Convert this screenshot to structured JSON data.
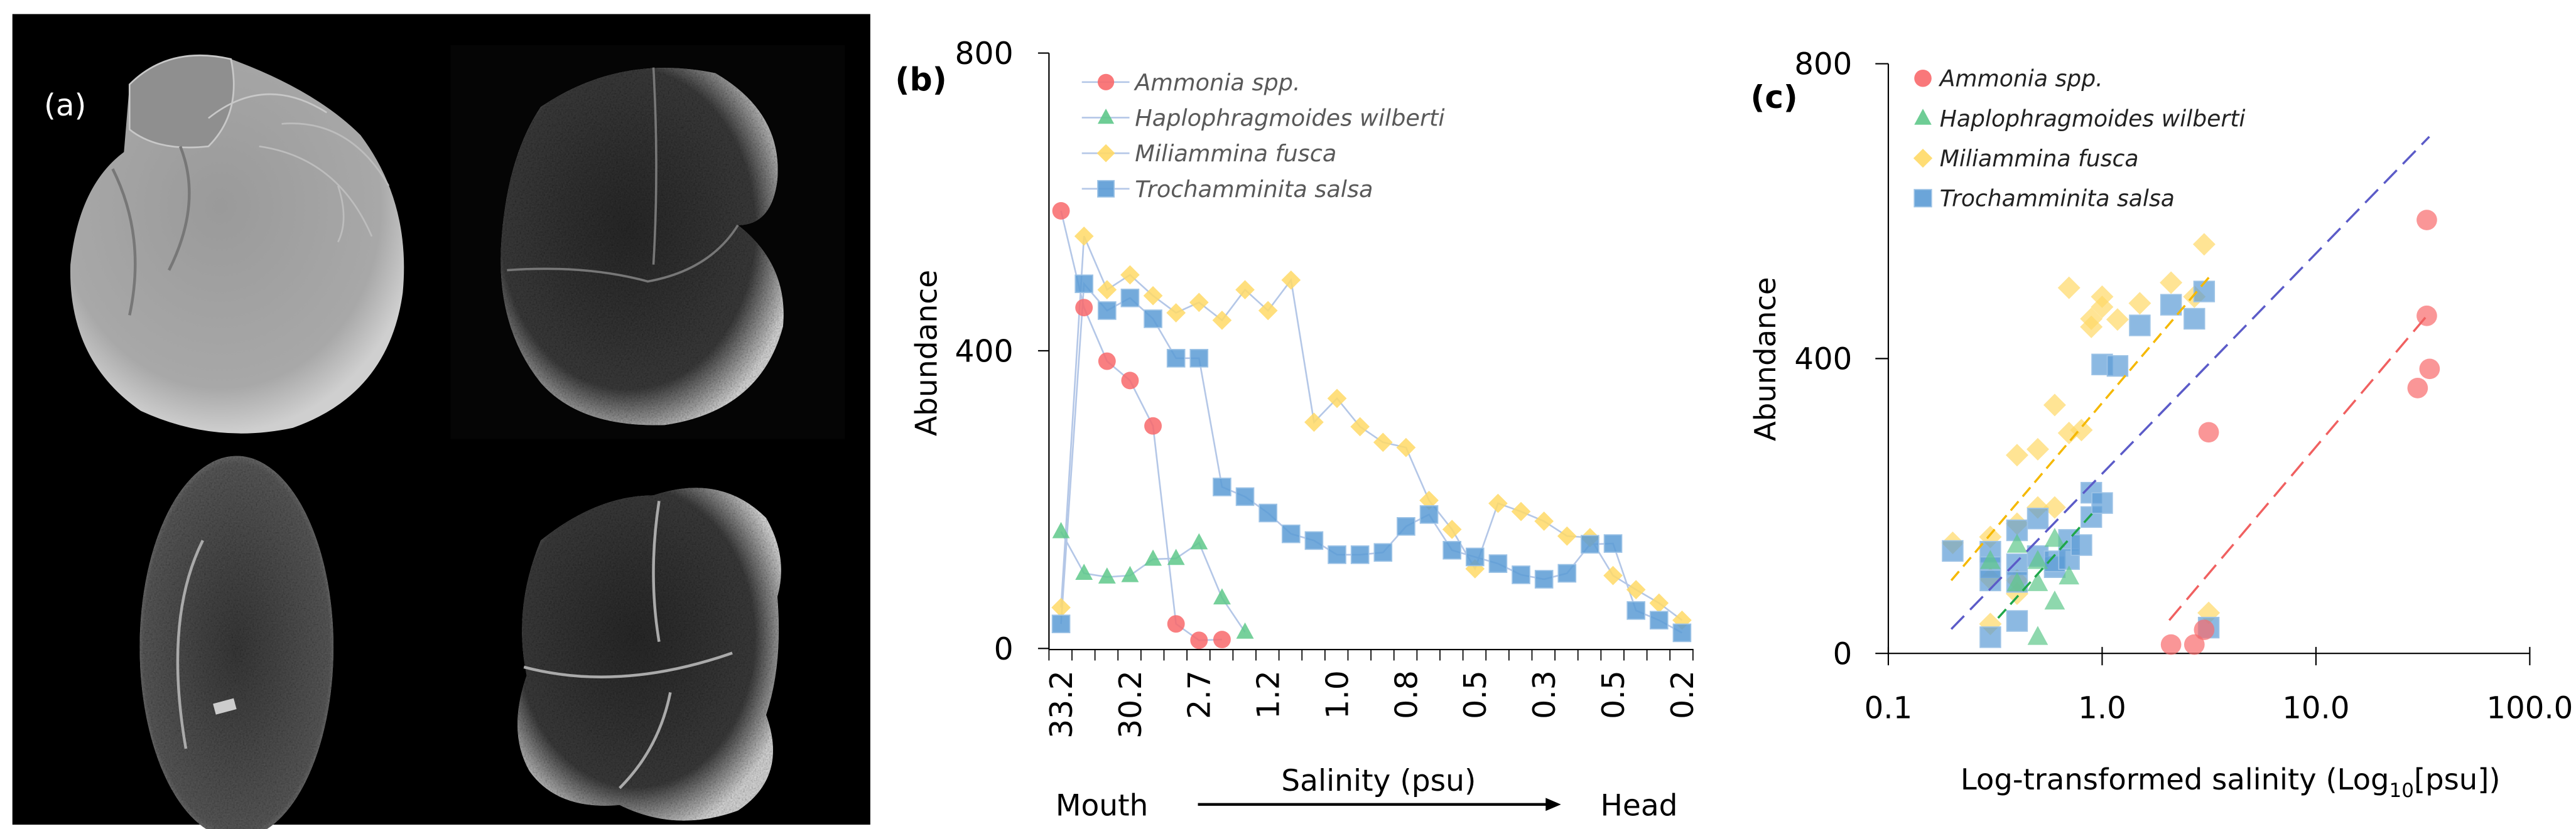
{
  "panel_a": {
    "label": "(a)"
  },
  "colors": {
    "ammonia": "#f8696b",
    "haplo": "#5ec88a",
    "miliammina": "#ffd966",
    "trochamminita": "#5b9bd5",
    "series_line": "#b4c7e7",
    "trend_blue": "#5b5bc8",
    "trend_yellow": "#f5b800",
    "trend_green": "#1fa64a",
    "trend_red": "#f06060"
  },
  "chart_data": [
    {
      "panel": "(b)",
      "type": "line",
      "xlabel": "Salinity (psu)",
      "ylabel": "Abundance",
      "ylim": [
        0,
        800
      ],
      "yticks": [
        "0",
        "400",
        "800"
      ],
      "n_stations": 28,
      "xtick_labels": [
        {
          "index": 0,
          "label": "33.2"
        },
        {
          "index": 3,
          "label": "30.2"
        },
        {
          "index": 6,
          "label": "2.7"
        },
        {
          "index": 9,
          "label": "1.2"
        },
        {
          "index": 12,
          "label": "1.0"
        },
        {
          "index": 15,
          "label": "0.8"
        },
        {
          "index": 18,
          "label": "0.5"
        },
        {
          "index": 21,
          "label": "0.3"
        },
        {
          "index": 24,
          "label": "0.5"
        },
        {
          "index": 27,
          "label": "0.2"
        }
      ],
      "direction": {
        "start": "Mouth",
        "end": "Head"
      },
      "legend": "top-left",
      "series": [
        {
          "name": "Ammonia spp.",
          "key": "ammonia",
          "marker": "circle",
          "values": [
            588,
            458,
            386,
            360,
            299,
            33,
            11,
            12
          ]
        },
        {
          "name": "Haplophragmoides wilberti",
          "key": "haplo",
          "marker": "triangle",
          "values": [
            157,
            101,
            96,
            98,
            120,
            121,
            142,
            68,
            22
          ]
        },
        {
          "name": "Miliammina fusca",
          "key": "miliammina",
          "marker": "diamond",
          "values": [
            55,
            554,
            482,
            502,
            474,
            451,
            465,
            441,
            482,
            454,
            495,
            304,
            336,
            298,
            277,
            270,
            199,
            160,
            107,
            195,
            184,
            171,
            151,
            149,
            98,
            79,
            61,
            38
          ]
        },
        {
          "name": "Trochamminita salsa",
          "key": "trochamminita",
          "marker": "square",
          "values": [
            33,
            490,
            454,
            471,
            443,
            390,
            390,
            217,
            204,
            182,
            154,
            145,
            126,
            126,
            129,
            164,
            180,
            132,
            123,
            114,
            99,
            93,
            101,
            140,
            141,
            51,
            38,
            21
          ]
        }
      ]
    },
    {
      "panel": "(c)",
      "type": "scatter",
      "xlabel": "Log-transformed salinity (Log",
      "xlabel_sub": "10",
      "xlabel_end": "[psu])",
      "ylabel": "Abundance",
      "xscale": "log",
      "xlim": [
        0.1,
        100
      ],
      "ylim": [
        0,
        800
      ],
      "xticks": [
        "0.1",
        "1.0",
        "10.0",
        "100.0"
      ],
      "yticks": [
        "0",
        "400",
        "800"
      ],
      "legend": "top-left",
      "series": [
        {
          "name": "Ammonia spp.",
          "key": "ammonia",
          "marker": "circle",
          "points": [
            [
              2.1,
              12
            ],
            [
              2.7,
              12
            ],
            [
              3.0,
              32
            ],
            [
              3.15,
              300
            ],
            [
              29.9,
              360
            ],
            [
              33,
              458
            ],
            [
              33,
              588
            ],
            [
              34,
              386
            ]
          ],
          "trend": [
            [
              2.06,
              45
            ],
            [
              33.9,
              462
            ]
          ]
        },
        {
          "name": "Haplophragmoides wilberti",
          "key": "haplo",
          "marker": "triangle",
          "points": [
            [
              0.3,
              125
            ],
            [
              0.4,
              147
            ],
            [
              0.4,
              95
            ],
            [
              0.5,
              125
            ],
            [
              0.5,
              95
            ],
            [
              0.5,
              22
            ],
            [
              0.6,
              155
            ],
            [
              0.6,
              70
            ],
            [
              0.7,
              104
            ]
          ],
          "trend": [
            [
              0.326,
              48
            ],
            [
              0.9,
              190
            ]
          ]
        },
        {
          "name": "Miliammina fusca",
          "key": "miliammina",
          "marker": "diamond",
          "points": [
            [
              0.2,
              150
            ],
            [
              0.3,
              158
            ],
            [
              0.3,
              101
            ],
            [
              0.3,
              40
            ],
            [
              0.4,
              269
            ],
            [
              0.4,
              176
            ],
            [
              0.4,
              99
            ],
            [
              0.4,
              81
            ],
            [
              0.5,
              277
            ],
            [
              0.5,
              198
            ],
            [
              0.6,
              337
            ],
            [
              0.6,
              198
            ],
            [
              0.7,
              496
            ],
            [
              0.7,
              299
            ],
            [
              0.8,
              303
            ],
            [
              0.89,
              454
            ],
            [
              0.89,
              443
            ],
            [
              1.0,
              484
            ],
            [
              1.0,
              470
            ],
            [
              1.18,
              453
            ],
            [
              1.5,
              475
            ],
            [
              2.1,
              503
            ],
            [
              2.7,
              484
            ],
            [
              3.0,
              555
            ],
            [
              3.15,
              55
            ]
          ],
          "trend": [
            [
              0.197,
              99
            ],
            [
              3.24,
              514
            ]
          ]
        },
        {
          "name": "Trochamminita salsa",
          "key": "trochamminita",
          "marker": "square",
          "points": [
            [
              0.2,
              139
            ],
            [
              0.3,
              138
            ],
            [
              0.3,
              117
            ],
            [
              0.3,
              99
            ],
            [
              0.3,
              22
            ],
            [
              0.4,
              167
            ],
            [
              0.4,
              121
            ],
            [
              0.4,
              97
            ],
            [
              0.4,
              44
            ],
            [
              0.5,
              183
            ],
            [
              0.5,
              132
            ],
            [
              0.6,
              117
            ],
            [
              0.6,
              125
            ],
            [
              0.7,
              154
            ],
            [
              0.7,
              128
            ],
            [
              0.8,
              147
            ],
            [
              0.89,
              218
            ],
            [
              0.89,
              185
            ],
            [
              1.0,
              204
            ],
            [
              1.0,
              392
            ],
            [
              1.18,
              390
            ],
            [
              1.5,
              445
            ],
            [
              2.1,
              473
            ],
            [
              2.7,
              454
            ],
            [
              3.0,
              491
            ],
            [
              3.15,
              35
            ]
          ],
          "trend": [
            [
              0.197,
              33
            ],
            [
              33.9,
              701
            ]
          ]
        }
      ]
    }
  ]
}
